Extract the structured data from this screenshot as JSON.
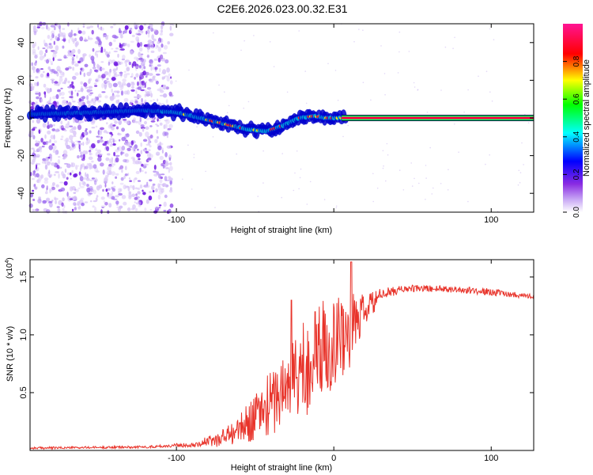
{
  "title": "C2E6.2026.023.00.32.E31",
  "chart_data": [
    {
      "type": "heatmap",
      "xlabel": "Height of straight line (km)",
      "ylabel": "Frequency (Hz)",
      "xlim": [
        -193,
        127
      ],
      "ylim": [
        -50,
        50
      ],
      "xticks": [
        -100,
        0,
        100
      ],
      "xtick_labels": [
        "-100",
        "",
        "100"
      ],
      "yticks": [
        -40,
        -20,
        0,
        20,
        40
      ],
      "ytick_labels": [
        "-40",
        "-20",
        "0",
        "20",
        "40"
      ],
      "colorbar": {
        "label": "Normalized spectral amplitude",
        "range": [
          0,
          1
        ],
        "ticks": [
          0,
          0.2,
          0.4,
          0.6,
          0.8
        ],
        "tick_labels": [
          "0.0",
          "0.2",
          "0.4",
          "0.6",
          "0.8"
        ],
        "colors": [
          "#ffffff",
          "#8a2be2",
          "#0000ff",
          "#00ffff",
          "#00ff00",
          "#ffff00",
          "#ff0000",
          "#ff00ff"
        ]
      },
      "ridge": {
        "x": [
          -193,
          -150,
          -120,
          -100,
          -85,
          -70,
          -55,
          -42,
          -32,
          -22,
          -12,
          -5,
          0,
          10,
          127
        ],
        "freq_hz": [
          2,
          3,
          4,
          3,
          0,
          -3,
          -6,
          -7,
          -4,
          0,
          1,
          0,
          0,
          0,
          0
        ]
      },
      "scatter_noise_region_km": [
        -193,
        -103
      ]
    },
    {
      "type": "line",
      "xlabel": "Height of straight line (km)",
      "ylabel": "SNR (10 * v/v)",
      "exponent_label": "(x10",
      "exponent_power": "4",
      "exponent_close": ")",
      "xlim": [
        -193,
        127
      ],
      "ylim": [
        0,
        1.65
      ],
      "xticks": [
        -100,
        0,
        100
      ],
      "xtick_labels": [
        "-100",
        "0",
        "100"
      ],
      "yticks": [
        0.5,
        1.0,
        1.5
      ],
      "ytick_labels": [
        "0.5",
        "1.0",
        "1.5"
      ],
      "series_color": "#e8332a",
      "envelope": {
        "x": [
          -193,
          -120,
          -90,
          -75,
          -60,
          -45,
          -30,
          -20,
          -10,
          0,
          10,
          20,
          30,
          45,
          70,
          100,
          127
        ],
        "mean": [
          0.02,
          0.03,
          0.05,
          0.09,
          0.18,
          0.35,
          0.55,
          0.7,
          0.85,
          0.95,
          1.05,
          1.2,
          1.35,
          1.4,
          1.4,
          1.37,
          1.33
        ],
        "amp": [
          0.01,
          0.01,
          0.02,
          0.06,
          0.12,
          0.25,
          0.35,
          0.45,
          0.45,
          0.4,
          0.35,
          0.15,
          0.05,
          0.03,
          0.03,
          0.03,
          0.02
        ]
      },
      "peaks": [
        {
          "x": 11,
          "y": 1.63
        },
        {
          "x": -27,
          "y": 1.3
        },
        {
          "x": -12,
          "y": 1.2
        }
      ]
    }
  ]
}
